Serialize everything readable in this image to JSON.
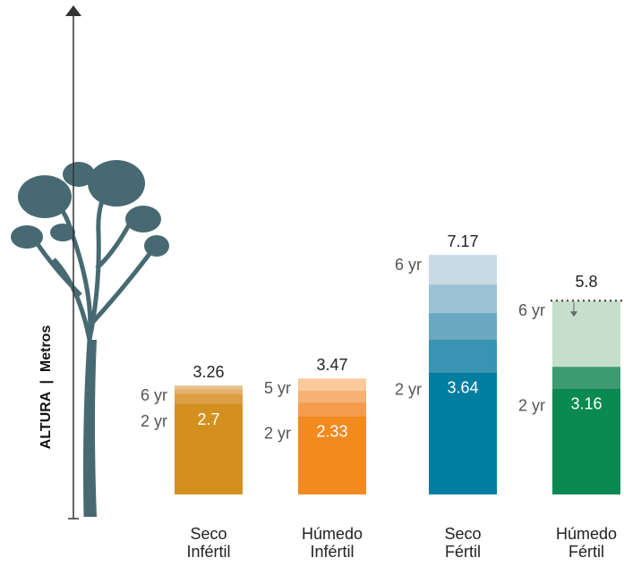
{
  "chart_data": {
    "type": "layered-bar",
    "y_axis_label": "ALTURA  |  Metros",
    "ylim": [
      0,
      14.8
    ],
    "bars": [
      {
        "label": [
          "Seco",
          "Infértil"
        ],
        "segments": [
          {
            "value": 2.7,
            "year": "2 yr",
            "color": "#d4901f"
          },
          {
            "value": 3.0,
            "year": null,
            "color": "#dc9f45"
          },
          {
            "value": 3.15,
            "year": null,
            "color": "#e3b06c"
          },
          {
            "value": 3.26,
            "year": "6 yr",
            "color": "#e9c38f"
          }
        ]
      },
      {
        "label": [
          "Húmedo",
          "Infértil"
        ],
        "segments": [
          {
            "value": 2.33,
            "year": "2 yr",
            "color": "#f28a1f"
          },
          {
            "value": 2.75,
            "year": null,
            "color": "#f59c4c"
          },
          {
            "value": 3.1,
            "year": null,
            "color": "#f8b075"
          },
          {
            "value": 3.47,
            "year": "5 yr",
            "color": "#fbc99c"
          }
        ]
      },
      {
        "label": [
          "Seco",
          "Fértil"
        ],
        "segments": [
          {
            "value": 3.64,
            "year": "2 yr",
            "color": "#007e9f"
          },
          {
            "value": 4.63,
            "year": null,
            "color": "#3894b2"
          },
          {
            "value": 5.43,
            "year": null,
            "color": "#6aa9c1"
          },
          {
            "value": 6.28,
            "year": null,
            "color": "#9bc3d4"
          },
          {
            "value": 7.17,
            "year": "6 yr",
            "color": "#c8dae4"
          }
        ]
      },
      {
        "label": [
          "Húmedo",
          "Fértil"
        ],
        "reference_line": true,
        "segments": [
          {
            "value": 3.16,
            "year": "2 yr",
            "color": "#0a8a50"
          },
          {
            "value": 3.82,
            "year": null,
            "color": "#3e9a70"
          },
          {
            "value": 5.8,
            "year": "6 yr",
            "color": "#c6dfcc"
          }
        ]
      }
    ]
  }
}
